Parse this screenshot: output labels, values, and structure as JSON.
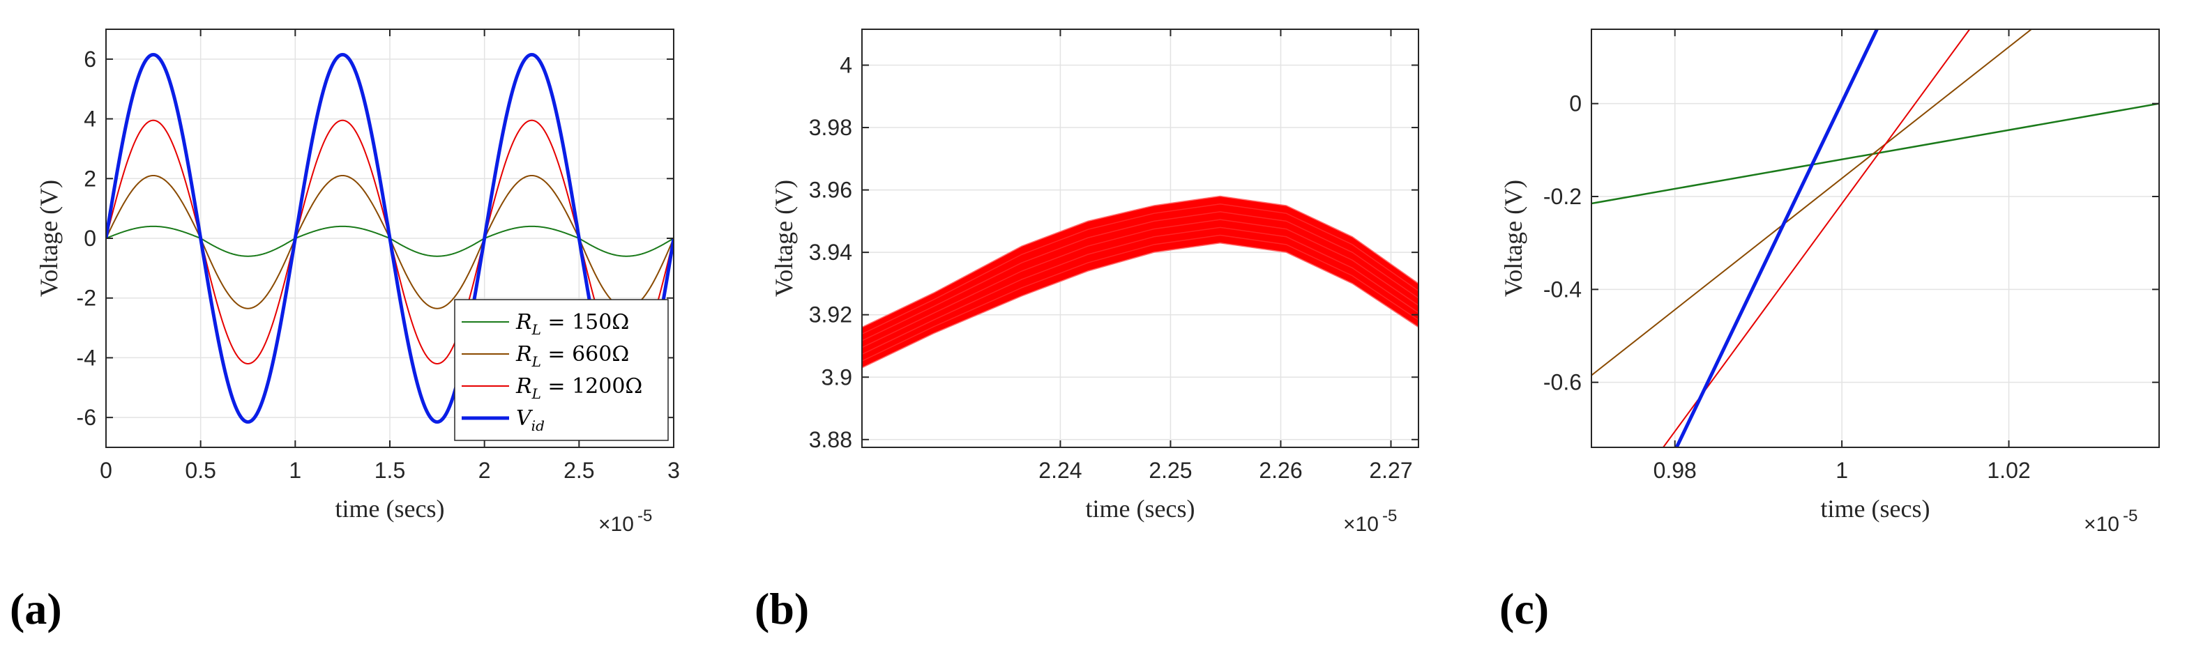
{
  "chart_data": [
    {
      "panel": "(a)",
      "type": "line",
      "xlabel": "time (secs)",
      "ylabel": "Voltage (V)",
      "x_exponent": "×10",
      "x_exponent_power": "-5",
      "xlim": [
        0,
        3
      ],
      "ylim": [
        -7,
        7
      ],
      "xticks": [
        0,
        0.5,
        1,
        1.5,
        2,
        2.5,
        3
      ],
      "xtick_labels": [
        "0",
        "0.5",
        "1",
        "1.5",
        "2",
        "2.5",
        "3"
      ],
      "yticks": [
        -6,
        -4,
        -2,
        0,
        2,
        4,
        6
      ],
      "ytick_labels": [
        "-6",
        "-4",
        "-2",
        "0",
        "2",
        "4",
        "6"
      ],
      "grid": true,
      "legend_position": "bottom-right",
      "series": [
        {
          "name": "R_L = 150Ω",
          "legend_main": "R",
          "legend_sub": "L",
          "legend_rest": " = 150Ω",
          "color": "#1a7a1a",
          "amplitude_pos": 0.4,
          "amplitude_neg": -0.6,
          "period": 1.0,
          "width": 2
        },
        {
          "name": "R_L = 660Ω",
          "legend_main": "R",
          "legend_sub": "L",
          "legend_rest": " = 660Ω",
          "color": "#8a4a00",
          "amplitude_pos": 2.1,
          "amplitude_neg": -2.35,
          "period": 1.0,
          "width": 2
        },
        {
          "name": "R_L = 1200Ω",
          "legend_main": "R",
          "legend_sub": "L",
          "legend_rest": " = 1200Ω",
          "color": "#e60000",
          "amplitude_pos": 3.95,
          "amplitude_neg": -4.2,
          "period": 1.0,
          "width": 2
        },
        {
          "name": "V_id",
          "legend_main": "V",
          "legend_sub": "id",
          "legend_rest": "",
          "color": "#0a1ee6",
          "amplitude_pos": 6.15,
          "amplitude_neg": -6.15,
          "period": 1.0,
          "width": 5
        }
      ]
    },
    {
      "panel": "(b)",
      "type": "line",
      "xlabel": "time (secs)",
      "ylabel": "Voltage (V)",
      "x_exponent": "×10",
      "x_exponent_power": "-5",
      "xlim": [
        2.222,
        2.2725
      ],
      "ylim": [
        3.8775,
        4.0115
      ],
      "xticks": [
        2.24,
        2.25,
        2.26,
        2.27
      ],
      "xtick_labels": [
        "2.24",
        "2.25",
        "2.26",
        "2.27"
      ],
      "yticks": [
        3.88,
        3.9,
        3.92,
        3.94,
        3.96,
        3.98,
        4.0
      ],
      "ytick_labels": [
        "3.88",
        "3.9",
        "3.92",
        "3.94",
        "3.96",
        "3.98",
        "4"
      ],
      "grid": true,
      "band": {
        "color": "#ff0000",
        "x": [
          2.222,
          2.2285,
          2.2365,
          2.2425,
          2.2485,
          2.2545,
          2.2605,
          2.2665,
          2.2725
        ],
        "upper": [
          3.916,
          3.927,
          3.942,
          3.95,
          3.955,
          3.958,
          3.955,
          3.945,
          3.93
        ],
        "lower": [
          3.903,
          3.914,
          3.926,
          3.934,
          3.94,
          3.943,
          3.94,
          3.93,
          3.916
        ]
      }
    },
    {
      "panel": "(c)",
      "type": "line",
      "xlabel": "time (secs)",
      "ylabel": "Voltage (V)",
      "x_exponent": "×10",
      "x_exponent_power": "-5",
      "xlim": [
        0.97,
        1.038
      ],
      "ylim": [
        -0.74,
        0.16
      ],
      "xticks": [
        0.98,
        1.0,
        1.02
      ],
      "xtick_labels": [
        "0.98",
        "1",
        "1.02"
      ],
      "yticks": [
        -0.6,
        -0.4,
        -0.2,
        0
      ],
      "ytick_labels": [
        "-0.6",
        "-0.4",
        "-0.2",
        "0"
      ],
      "grid": true,
      "series": [
        {
          "name": "green",
          "color": "#1a7a1a",
          "x": [
            0.97,
            1.038
          ],
          "y": [
            -0.215,
            0.0
          ],
          "width": 2.5
        },
        {
          "name": "brown",
          "color": "#8a4a00",
          "x": [
            0.97,
            1.0227
          ],
          "y": [
            -0.585,
            0.16
          ],
          "width": 2
        },
        {
          "name": "red",
          "color": "#e60000",
          "x": [
            0.9786,
            1.0153
          ],
          "y": [
            -0.74,
            0.16
          ],
          "width": 2
        },
        {
          "name": "blue",
          "color": "#0a1ee6",
          "x": [
            0.9802,
            1.0042
          ],
          "y": [
            -0.74,
            0.16
          ],
          "width": 5
        }
      ]
    }
  ]
}
